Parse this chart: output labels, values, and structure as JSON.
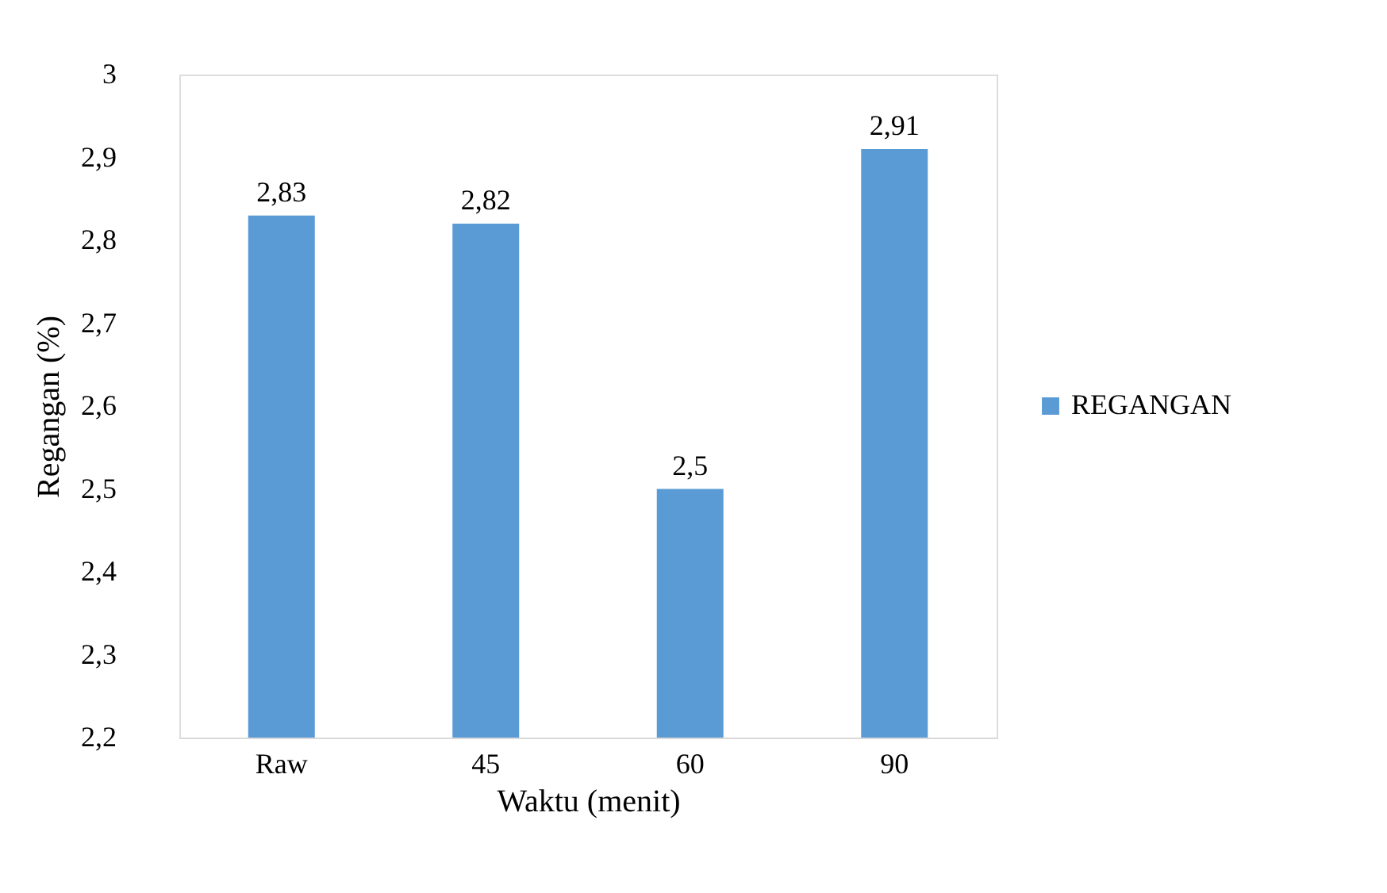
{
  "chart_data": {
    "type": "bar",
    "xlabel": "Waktu (menit)",
    "ylabel": "Regangan (%)",
    "categories": [
      "Raw",
      "45",
      "60",
      "90"
    ],
    "series": [
      {
        "name": "REGANGAN",
        "color": "#5b9bd5",
        "values": [
          2.83,
          2.82,
          2.5,
          2.91
        ],
        "value_labels": [
          "2,83",
          "2,82",
          "2,5",
          "2,91"
        ]
      }
    ],
    "ylim": [
      2.2,
      3
    ],
    "yticks": [
      {
        "value": 2.2,
        "label": "2,2"
      },
      {
        "value": 2.3,
        "label": "2,3"
      },
      {
        "value": 2.4,
        "label": "2,4"
      },
      {
        "value": 2.5,
        "label": "2,5"
      },
      {
        "value": 2.6,
        "label": "2,6"
      },
      {
        "value": 2.7,
        "label": "2,7"
      },
      {
        "value": 2.8,
        "label": "2,8"
      },
      {
        "value": 2.9,
        "label": "2,9"
      },
      {
        "value": 3,
        "label": "3"
      }
    ],
    "grid": false,
    "legend": "right"
  }
}
